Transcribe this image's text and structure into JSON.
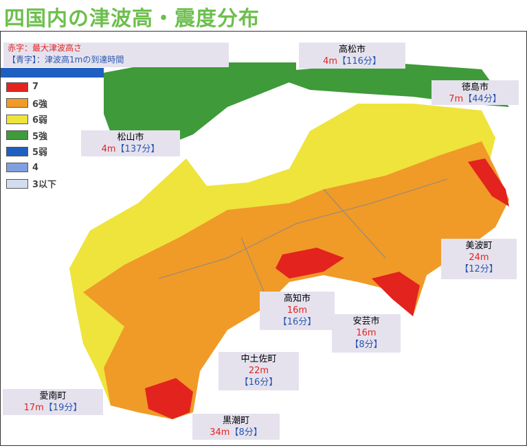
{
  "title": "四国内の津波高・震度分布",
  "notes": [
    {
      "label": "赤字",
      "text": "：最大津波高さ"
    },
    {
      "label": "【青字】",
      "text": "：津波高1mの到達時間"
    }
  ],
  "legend": [
    {
      "label": "7",
      "color": "#e3231e"
    },
    {
      "label": "6強",
      "color": "#f09a28"
    },
    {
      "label": "6弱",
      "color": "#eee43c"
    },
    {
      "label": "5強",
      "color": "#3f9a3a"
    },
    {
      "label": "5弱",
      "color": "#1f5fbf"
    },
    {
      "label": "4",
      "color": "#7f9fdf"
    },
    {
      "label": "3以下",
      "color": "#d4dcf0"
    }
  ],
  "cities": [
    {
      "name": "高松市",
      "height": "4m",
      "time": "【116分】"
    },
    {
      "name": "徳島市",
      "height": "7m",
      "time": "【44分】"
    },
    {
      "name": "松山市",
      "height": "4m",
      "time": "【137分】"
    },
    {
      "name": "美波町",
      "height": "24m",
      "time": "【12分】"
    },
    {
      "name": "高知市",
      "height": "16m",
      "time": "【16分】"
    },
    {
      "name": "安芸市",
      "height": "16m",
      "time": "【8分】"
    },
    {
      "name": "中土佐町",
      "height": "22m",
      "time": "【16分】"
    },
    {
      "name": "愛南町",
      "height": "17m",
      "time": "【19分】"
    },
    {
      "name": "黒潮町",
      "height": "34m",
      "time": "【8分】"
    }
  ]
}
